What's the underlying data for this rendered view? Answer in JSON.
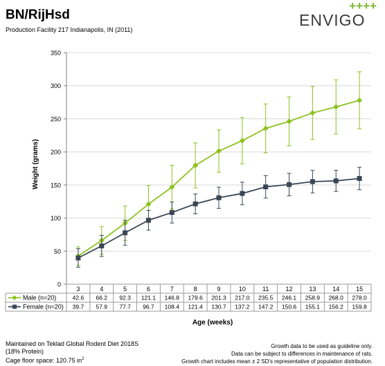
{
  "header": {
    "title": "BN/RijHsd",
    "subtitle": "Production Facility 217 Indianapolis, IN (2011)"
  },
  "logo": {
    "plus": "++++",
    "word": "ENVIGO"
  },
  "colors": {
    "male": "#8ec21f",
    "female": "#3a4654",
    "grid": "#d9d9d9",
    "axis": "#808080"
  },
  "chart_data": {
    "type": "line",
    "x": [
      3,
      4,
      5,
      6,
      7,
      8,
      9,
      10,
      11,
      12,
      13,
      14,
      15
    ],
    "xlabel": "Age (weeks)",
    "ylabel": "Weight (grams)",
    "ylim": [
      0,
      350
    ],
    "yticks": [
      0,
      50,
      100,
      150,
      200,
      250,
      300,
      350
    ],
    "grid": true,
    "legend": "table-left",
    "series": [
      {
        "name": "Male (n=20)",
        "values": [
          42.6,
          66.2,
          92.3,
          121.1,
          146.8,
          179.6,
          201.3,
          217.0,
          235.5,
          246.1,
          258.9,
          268.0,
          278.0
        ],
        "err": [
          14,
          21,
          26,
          28,
          33,
          34,
          32,
          35,
          37,
          37,
          40,
          41,
          43
        ],
        "labels": [
          "42.6",
          "66.2",
          "92.3",
          "121.1",
          "146.8",
          "179.6",
          "201.3",
          "217.0",
          "235.5",
          "246.1",
          "258.9",
          "268.0",
          "278.0"
        ]
      },
      {
        "name": "Female (n=20)",
        "values": [
          39.7,
          57.9,
          77.7,
          96.7,
          108.4,
          121.4,
          130.7,
          137.2,
          147.2,
          150.6,
          155.1,
          156.2,
          159.8
        ],
        "err": [
          14,
          16,
          19,
          15,
          16,
          15,
          16,
          17,
          17,
          17,
          17,
          16,
          17
        ],
        "labels": [
          "39.7",
          "57.9",
          "77.7",
          "96.7",
          "108.4",
          "121.4",
          "130.7",
          "137.2",
          "147.2",
          "150.6",
          "155.1",
          "156.2",
          "159.8"
        ]
      }
    ]
  },
  "footer": {
    "left_line1": "Maintained on Teklad Global Rodent Diet 2018S",
    "left_line2": "(18% Protein)",
    "left_line3_prefix": "Cage floor space: 120.75 in",
    "left_line3_sup": "2",
    "right_line1": "Growth data to be used as guideline only.",
    "right_line2": "Data can be subject to differences in maintenance of rats.",
    "right_line3": "Growth chart includes mean ± 2 SD's representative of population distribution."
  }
}
